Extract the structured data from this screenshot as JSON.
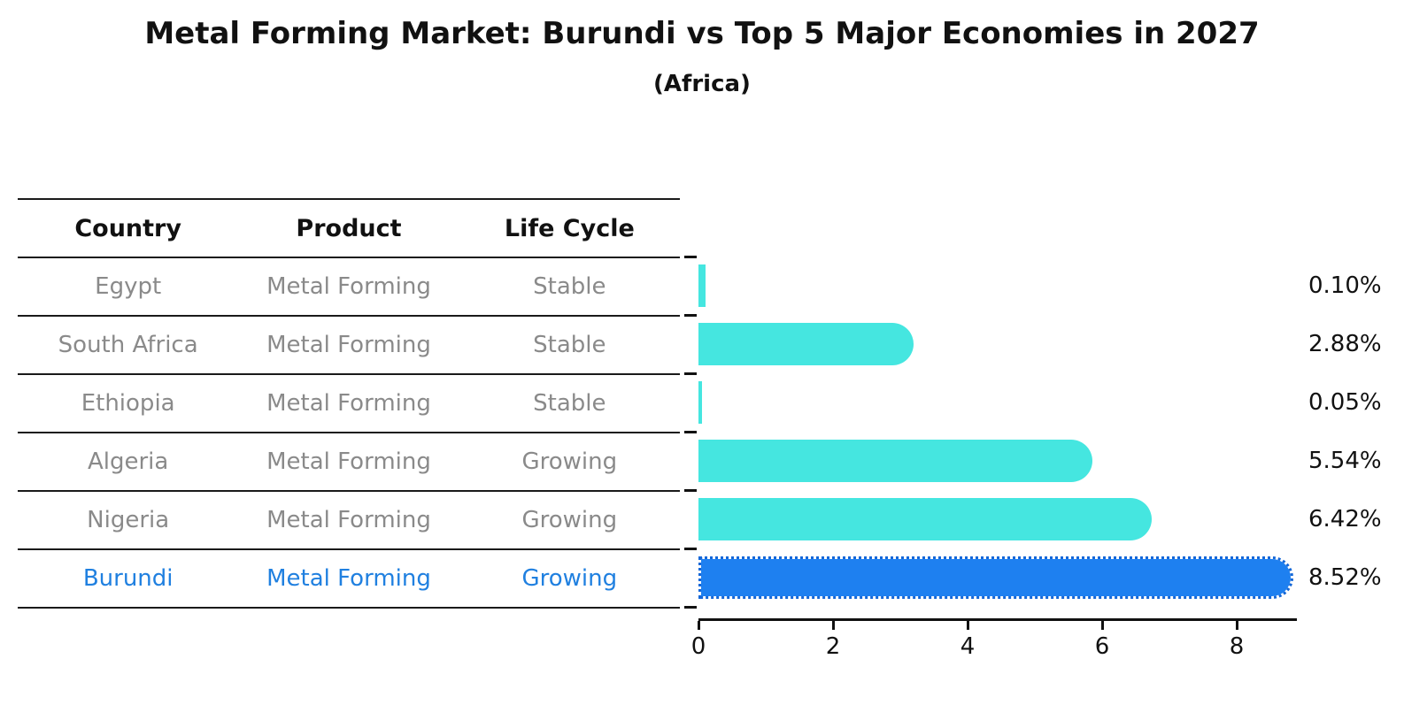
{
  "title": "Metal Forming Market: Burundi vs Top 5 Major Economies in 2027",
  "subtitle": "(Africa)",
  "table": {
    "headers": [
      "Country",
      "Product",
      "Life Cycle"
    ],
    "rows": [
      {
        "country": "Egypt",
        "product": "Metal Forming",
        "life_cycle": "Stable",
        "highlight": false
      },
      {
        "country": "South Africa",
        "product": "Metal Forming",
        "life_cycle": "Stable",
        "highlight": false
      },
      {
        "country": "Ethiopia",
        "product": "Metal Forming",
        "life_cycle": "Stable",
        "highlight": false
      },
      {
        "country": "Algeria",
        "product": "Metal Forming",
        "life_cycle": "Growing",
        "highlight": false
      },
      {
        "country": "Nigeria",
        "product": "Metal Forming",
        "life_cycle": "Growing",
        "highlight": false
      },
      {
        "country": "Burundi",
        "product": "Metal Forming",
        "life_cycle": "Growing",
        "highlight": true
      }
    ]
  },
  "chart_data": {
    "type": "bar",
    "orientation": "horizontal",
    "title": "Metal Forming Market: Burundi vs Top 5 Major Economies in 2027",
    "subtitle": "(Africa)",
    "categories": [
      "Egypt",
      "South Africa",
      "Ethiopia",
      "Algeria",
      "Nigeria",
      "Burundi"
    ],
    "values": [
      0.1,
      2.88,
      0.05,
      5.54,
      6.42,
      8.52
    ],
    "value_labels": [
      "0.10%",
      "2.88%",
      "0.05%",
      "5.54%",
      "6.42%",
      "8.52%"
    ],
    "xlabel": "",
    "ylabel": "",
    "xticks": [
      0,
      2,
      4,
      6,
      8
    ],
    "xlim": [
      0,
      9
    ],
    "grid": false,
    "legend": "none",
    "bar_color": "#45E6E0",
    "highlight_color": "#1E80F0",
    "highlight_border_color": "#1467D8",
    "highlight_index": 5
  },
  "colors": {
    "text_primary": "#111111",
    "text_muted": "#8a8a8a",
    "highlight_text": "#2080E0",
    "axis": "#111111",
    "background": "#ffffff"
  }
}
